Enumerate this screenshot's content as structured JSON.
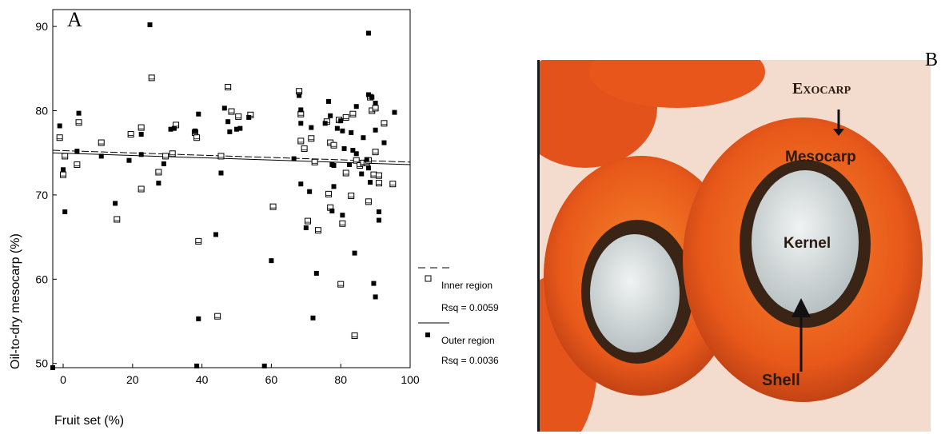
{
  "panel_a_letter": "A",
  "panel_b_letter": "B",
  "photo_labels": {
    "exocarp": "Exocarp",
    "mesocarp": "Mesocarp",
    "kernel": "Kernel",
    "shell": "Shell"
  },
  "chart_data": {
    "type": "scatter",
    "xlabel": "Fruit set (%)",
    "ylabel": "Oil-to-dry mesocarp    (%)",
    "xlim": [
      -3,
      100
    ],
    "ylim": [
      49.5,
      92
    ],
    "x_ticks": [
      0,
      20,
      40,
      60,
      80,
      100
    ],
    "y_ticks": [
      50,
      60,
      70,
      80,
      90
    ],
    "grid": false,
    "legend_position": "right",
    "series": [
      {
        "name": "Inner region",
        "marker": "open-square",
        "rsq": "Rsq = 0.0059",
        "line_style": "dashed",
        "fit": {
          "x0": -3,
          "y0": 75.3,
          "x1": 100,
          "y1": 73.9
        },
        "points": [
          [
            -1,
            76.8
          ],
          [
            0,
            72.4
          ],
          [
            0.5,
            74.6
          ],
          [
            4,
            73.6
          ],
          [
            4.5,
            78.6
          ],
          [
            11,
            76.2
          ],
          [
            15.5,
            67.1
          ],
          [
            19.5,
            77.2
          ],
          [
            22.5,
            78
          ],
          [
            22.5,
            70.7
          ],
          [
            25.5,
            83.9
          ],
          [
            27.5,
            72.7
          ],
          [
            29.5,
            74.6
          ],
          [
            31.5,
            74.9
          ],
          [
            32.5,
            78.3
          ],
          [
            38,
            77.4
          ],
          [
            38.5,
            76.8
          ],
          [
            39,
            64.5
          ],
          [
            44.5,
            55.6
          ],
          [
            45.5,
            74.6
          ],
          [
            47.5,
            82.8
          ],
          [
            48.5,
            79.9
          ],
          [
            50.5,
            79.3
          ],
          [
            54,
            79.5
          ],
          [
            60.5,
            68.6
          ],
          [
            68,
            82.3
          ],
          [
            68.5,
            76.4
          ],
          [
            68.5,
            79.6
          ],
          [
            69.5,
            75.5
          ],
          [
            70.5,
            66.9
          ],
          [
            71.5,
            76.7
          ],
          [
            72.5,
            73.9
          ],
          [
            73.5,
            65.8
          ],
          [
            76,
            78.7
          ],
          [
            76.5,
            70.1
          ],
          [
            77,
            68.5
          ],
          [
            77,
            76.2
          ],
          [
            78,
            75.9
          ],
          [
            79.5,
            78.9
          ],
          [
            80,
            59.4
          ],
          [
            80.5,
            66.6
          ],
          [
            81.5,
            72.6
          ],
          [
            81.5,
            79.2
          ],
          [
            83,
            69.9
          ],
          [
            83.5,
            79.6
          ],
          [
            84,
            53.3
          ],
          [
            84.5,
            74.1
          ],
          [
            85.5,
            73.5
          ],
          [
            86.5,
            73.8
          ],
          [
            87.5,
            73.8
          ],
          [
            88,
            74.1
          ],
          [
            88,
            69.2
          ],
          [
            88.5,
            81.6
          ],
          [
            89,
            80
          ],
          [
            89.5,
            72.4
          ],
          [
            90,
            80.3
          ],
          [
            90,
            75.1
          ],
          [
            91,
            72.3
          ],
          [
            91,
            71.4
          ],
          [
            92.5,
            78.5
          ],
          [
            95,
            71.3
          ]
        ]
      },
      {
        "name": "Outer region",
        "marker": "filled-square",
        "rsq": "Rsq = 0.0036",
        "line_style": "solid",
        "fit": {
          "x0": -3,
          "y0": 75.0,
          "x1": 100,
          "y1": 73.6
        },
        "points": [
          [
            -3,
            49.5
          ],
          [
            -1,
            78.2
          ],
          [
            0,
            73
          ],
          [
            0.5,
            68
          ],
          [
            4,
            75.2
          ],
          [
            4.5,
            79.7
          ],
          [
            11,
            74.6
          ],
          [
            15,
            69
          ],
          [
            19,
            74.1
          ],
          [
            22.5,
            77.2
          ],
          [
            22.5,
            74.8
          ],
          [
            25,
            90.2
          ],
          [
            27.5,
            71.4
          ],
          [
            29,
            73.7
          ],
          [
            31,
            77.8
          ],
          [
            32,
            77.9
          ],
          [
            38,
            77.6
          ],
          [
            39,
            79.6
          ],
          [
            39,
            55.3
          ],
          [
            38.5,
            49.7
          ],
          [
            44,
            65.3
          ],
          [
            45.5,
            72.6
          ],
          [
            46.5,
            80.3
          ],
          [
            47.5,
            78.7
          ],
          [
            48,
            77.5
          ],
          [
            50,
            77.8
          ],
          [
            51,
            77.9
          ],
          [
            53.5,
            79.2
          ],
          [
            58,
            49.7
          ],
          [
            60,
            62.2
          ],
          [
            66.5,
            74.3
          ],
          [
            68,
            81.8
          ],
          [
            68.5,
            80.1
          ],
          [
            68.5,
            71.3
          ],
          [
            68.5,
            78.5
          ],
          [
            70,
            66.1
          ],
          [
            71,
            70.4
          ],
          [
            71.5,
            78
          ],
          [
            72,
            55.4
          ],
          [
            73,
            60.7
          ],
          [
            75.5,
            78.5
          ],
          [
            76.5,
            81.1
          ],
          [
            77.5,
            73.6
          ],
          [
            77,
            79.4
          ],
          [
            77.5,
            68.1
          ],
          [
            78,
            73.5
          ],
          [
            78,
            71
          ],
          [
            79,
            77.9
          ],
          [
            80,
            78.8
          ],
          [
            80.5,
            67.6
          ],
          [
            80.5,
            77.6
          ],
          [
            81,
            75.5
          ],
          [
            82.5,
            73.6
          ],
          [
            83,
            77.4
          ],
          [
            83.5,
            75.3
          ],
          [
            84,
            63.1
          ],
          [
            84.5,
            80.5
          ],
          [
            84.5,
            74.9
          ],
          [
            86,
            72.5
          ],
          [
            86.5,
            76.8
          ],
          [
            87.5,
            74.2
          ],
          [
            88,
            89.2
          ],
          [
            88,
            81.9
          ],
          [
            88,
            73.2
          ],
          [
            88.5,
            71.5
          ],
          [
            89,
            81.6
          ],
          [
            89.5,
            59.5
          ],
          [
            90,
            57.9
          ],
          [
            90,
            80.9
          ],
          [
            90,
            77.7
          ],
          [
            91,
            68
          ],
          [
            91,
            67
          ],
          [
            92.5,
            76.2
          ],
          [
            95.5,
            79.8
          ]
        ]
      }
    ]
  }
}
